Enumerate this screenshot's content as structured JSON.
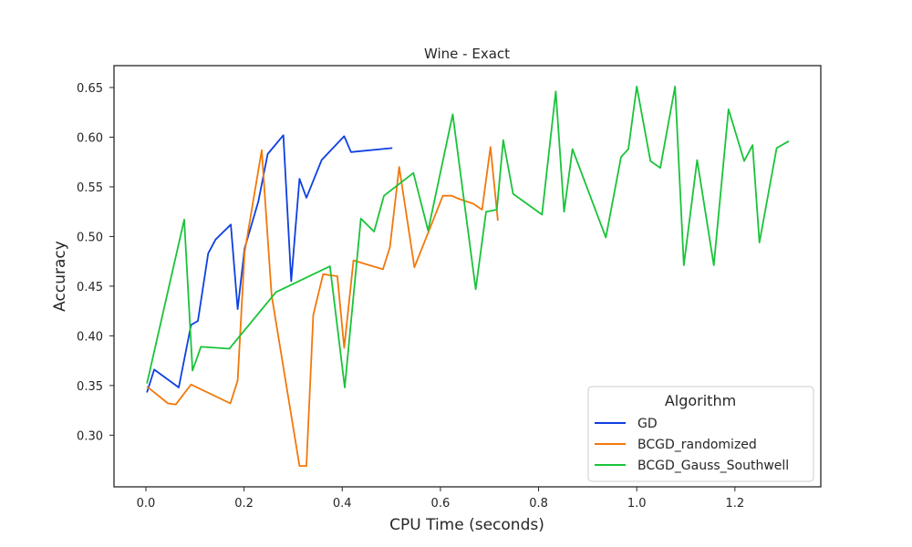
{
  "chart_data": {
    "type": "line",
    "title": "Wine - Exact",
    "xlabel": "CPU Time (seconds)",
    "ylabel": "Accuracy",
    "xlim": [
      -0.065,
      1.375
    ],
    "ylim": [
      0.248,
      0.672
    ],
    "xticks": [
      0.0,
      0.2,
      0.4,
      0.6,
      0.8,
      1.0,
      1.2
    ],
    "xtick_labels": [
      "0.0",
      "0.2",
      "0.4",
      "0.6",
      "0.8",
      "1.0",
      "1.2"
    ],
    "yticks": [
      0.3,
      0.35,
      0.4,
      0.45,
      0.5,
      0.55,
      0.6,
      0.65
    ],
    "ytick_labels": [
      "0.30",
      "0.35",
      "0.40",
      "0.45",
      "0.50",
      "0.55",
      "0.60",
      "0.65"
    ],
    "grid": false,
    "legend": {
      "title": "Algorithm",
      "placement": "bottom-right"
    },
    "series": [
      {
        "name": "GD",
        "color": "#0d40e0",
        "x": [
          0.002,
          0.017,
          0.067,
          0.092,
          0.106,
          0.127,
          0.142,
          0.173,
          0.187,
          0.201,
          0.229,
          0.248,
          0.28,
          0.296,
          0.313,
          0.327,
          0.358,
          0.404,
          0.418,
          0.502
        ],
        "y": [
          0.343,
          0.366,
          0.348,
          0.411,
          0.415,
          0.483,
          0.497,
          0.512,
          0.427,
          0.488,
          0.535,
          0.583,
          0.602,
          0.455,
          0.558,
          0.539,
          0.577,
          0.601,
          0.585,
          0.589
        ]
      },
      {
        "name": "BCGD_randomized",
        "color": "#f2780a",
        "x": [
          0.002,
          0.045,
          0.061,
          0.092,
          0.172,
          0.187,
          0.201,
          0.236,
          0.256,
          0.313,
          0.327,
          0.341,
          0.361,
          0.39,
          0.404,
          0.423,
          0.483,
          0.497,
          0.516,
          0.547,
          0.605,
          0.623,
          0.637,
          0.667,
          0.685,
          0.702,
          0.717
        ],
        "y": [
          0.349,
          0.332,
          0.331,
          0.351,
          0.332,
          0.355,
          0.484,
          0.587,
          0.441,
          0.269,
          0.269,
          0.421,
          0.462,
          0.46,
          0.388,
          0.476,
          0.467,
          0.489,
          0.57,
          0.469,
          0.541,
          0.541,
          0.538,
          0.533,
          0.527,
          0.59,
          0.516
        ]
      },
      {
        "name": "BCGD_Gauss_Southwell",
        "color": "#1ac33a",
        "x": [
          0.002,
          0.078,
          0.095,
          0.112,
          0.17,
          0.265,
          0.375,
          0.405,
          0.438,
          0.465,
          0.485,
          0.545,
          0.575,
          0.625,
          0.672,
          0.693,
          0.715,
          0.728,
          0.748,
          0.807,
          0.835,
          0.852,
          0.869,
          0.937,
          0.968,
          0.983,
          1.0,
          1.028,
          1.048,
          1.078,
          1.096,
          1.123,
          1.157,
          1.187,
          1.219,
          1.236,
          1.25,
          1.285,
          1.31
        ],
        "y": [
          0.352,
          0.517,
          0.365,
          0.389,
          0.387,
          0.444,
          0.47,
          0.348,
          0.518,
          0.505,
          0.541,
          0.564,
          0.506,
          0.623,
          0.447,
          0.525,
          0.527,
          0.597,
          0.543,
          0.522,
          0.646,
          0.525,
          0.588,
          0.499,
          0.58,
          0.588,
          0.651,
          0.576,
          0.569,
          0.651,
          0.471,
          0.577,
          0.471,
          0.628,
          0.576,
          0.592,
          0.494,
          0.589,
          0.596
        ]
      }
    ]
  }
}
